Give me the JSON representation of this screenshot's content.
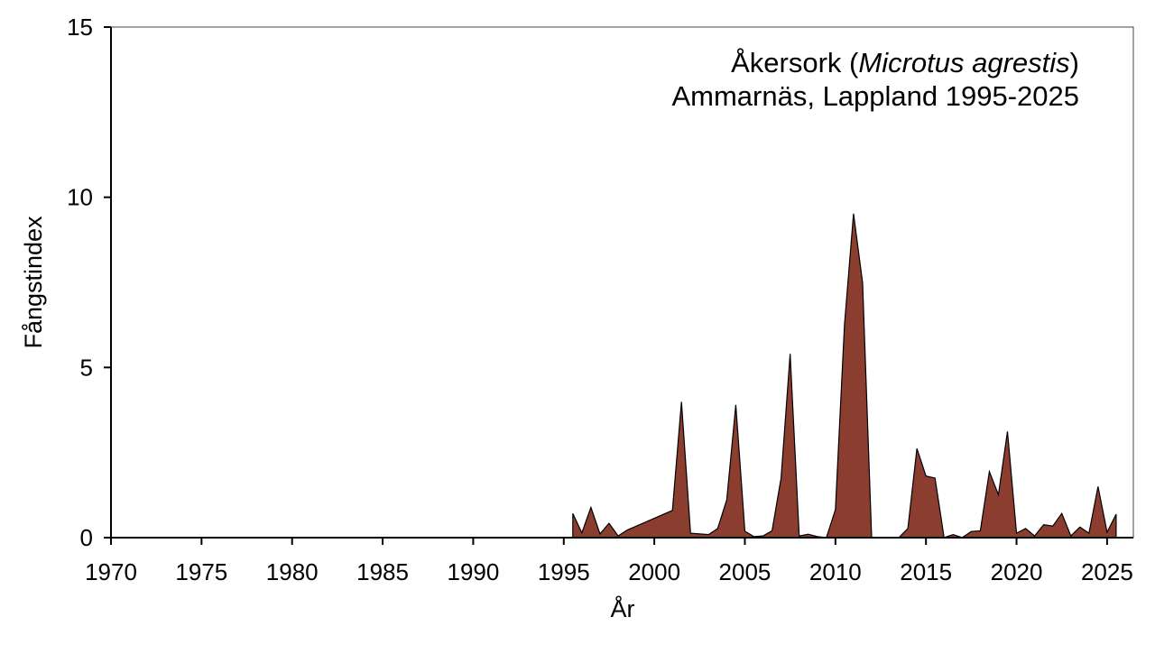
{
  "chart_data": {
    "type": "area",
    "title_common": "Åkersork",
    "title_species": "Microtus agrestis",
    "subtitle": "Ammarnäs, Lappland 1995-2025",
    "xlabel": "År",
    "ylabel": "Fångstindex",
    "xlim": [
      1970,
      2026.45
    ],
    "ylim": [
      0,
      15
    ],
    "xticks": [
      "1970",
      "1975",
      "1980",
      "1985",
      "1990",
      "1995",
      "2000",
      "2005",
      "2010",
      "2015",
      "2020",
      "2025"
    ],
    "yticks": [
      "0",
      "5",
      "10",
      "15"
    ],
    "grid": false,
    "fill_color": "#8B3E2F",
    "line_color": "#000000",
    "series": [
      {
        "x": [
          1995.5,
          1996,
          1996.5,
          1997,
          1997.5,
          1998,
          1998.5,
          2001,
          2001.5,
          2002,
          2003,
          2003.5,
          2004,
          2004.5,
          2005,
          2005.5,
          2006,
          2006.5,
          2007,
          2007.5,
          2008,
          2008.5,
          2009,
          2009.5,
          2010,
          2010.5,
          2011,
          2011.5,
          2012,
          2013.5,
          2014,
          2014.5,
          2015,
          2015.5,
          2016,
          2016.5,
          2017,
          2017.5,
          2018,
          2018.5,
          2019,
          2019.5,
          2020,
          2020.5,
          2021,
          2021.5,
          2022,
          2022.5,
          2023,
          2023.5,
          2024,
          2024.5,
          2025,
          2025.5
        ],
        "y": [
          0.71,
          0.14,
          0.89,
          0.11,
          0.42,
          0.05,
          0.22,
          0.8,
          3.99,
          0.13,
          0.09,
          0.27,
          1.11,
          3.9,
          0.19,
          0.03,
          0.05,
          0.2,
          1.75,
          5.4,
          0.05,
          0.1,
          0.03,
          0,
          0.82,
          6.25,
          9.52,
          7.49,
          0,
          0,
          0.27,
          2.62,
          1.81,
          1.75,
          0,
          0.09,
          0,
          0.18,
          0.2,
          1.94,
          1.26,
          3.12,
          0.13,
          0.27,
          0.05,
          0.38,
          0.34,
          0.71,
          0.05,
          0.31,
          0.13,
          1.5,
          0.16,
          0.69
        ]
      }
    ]
  }
}
